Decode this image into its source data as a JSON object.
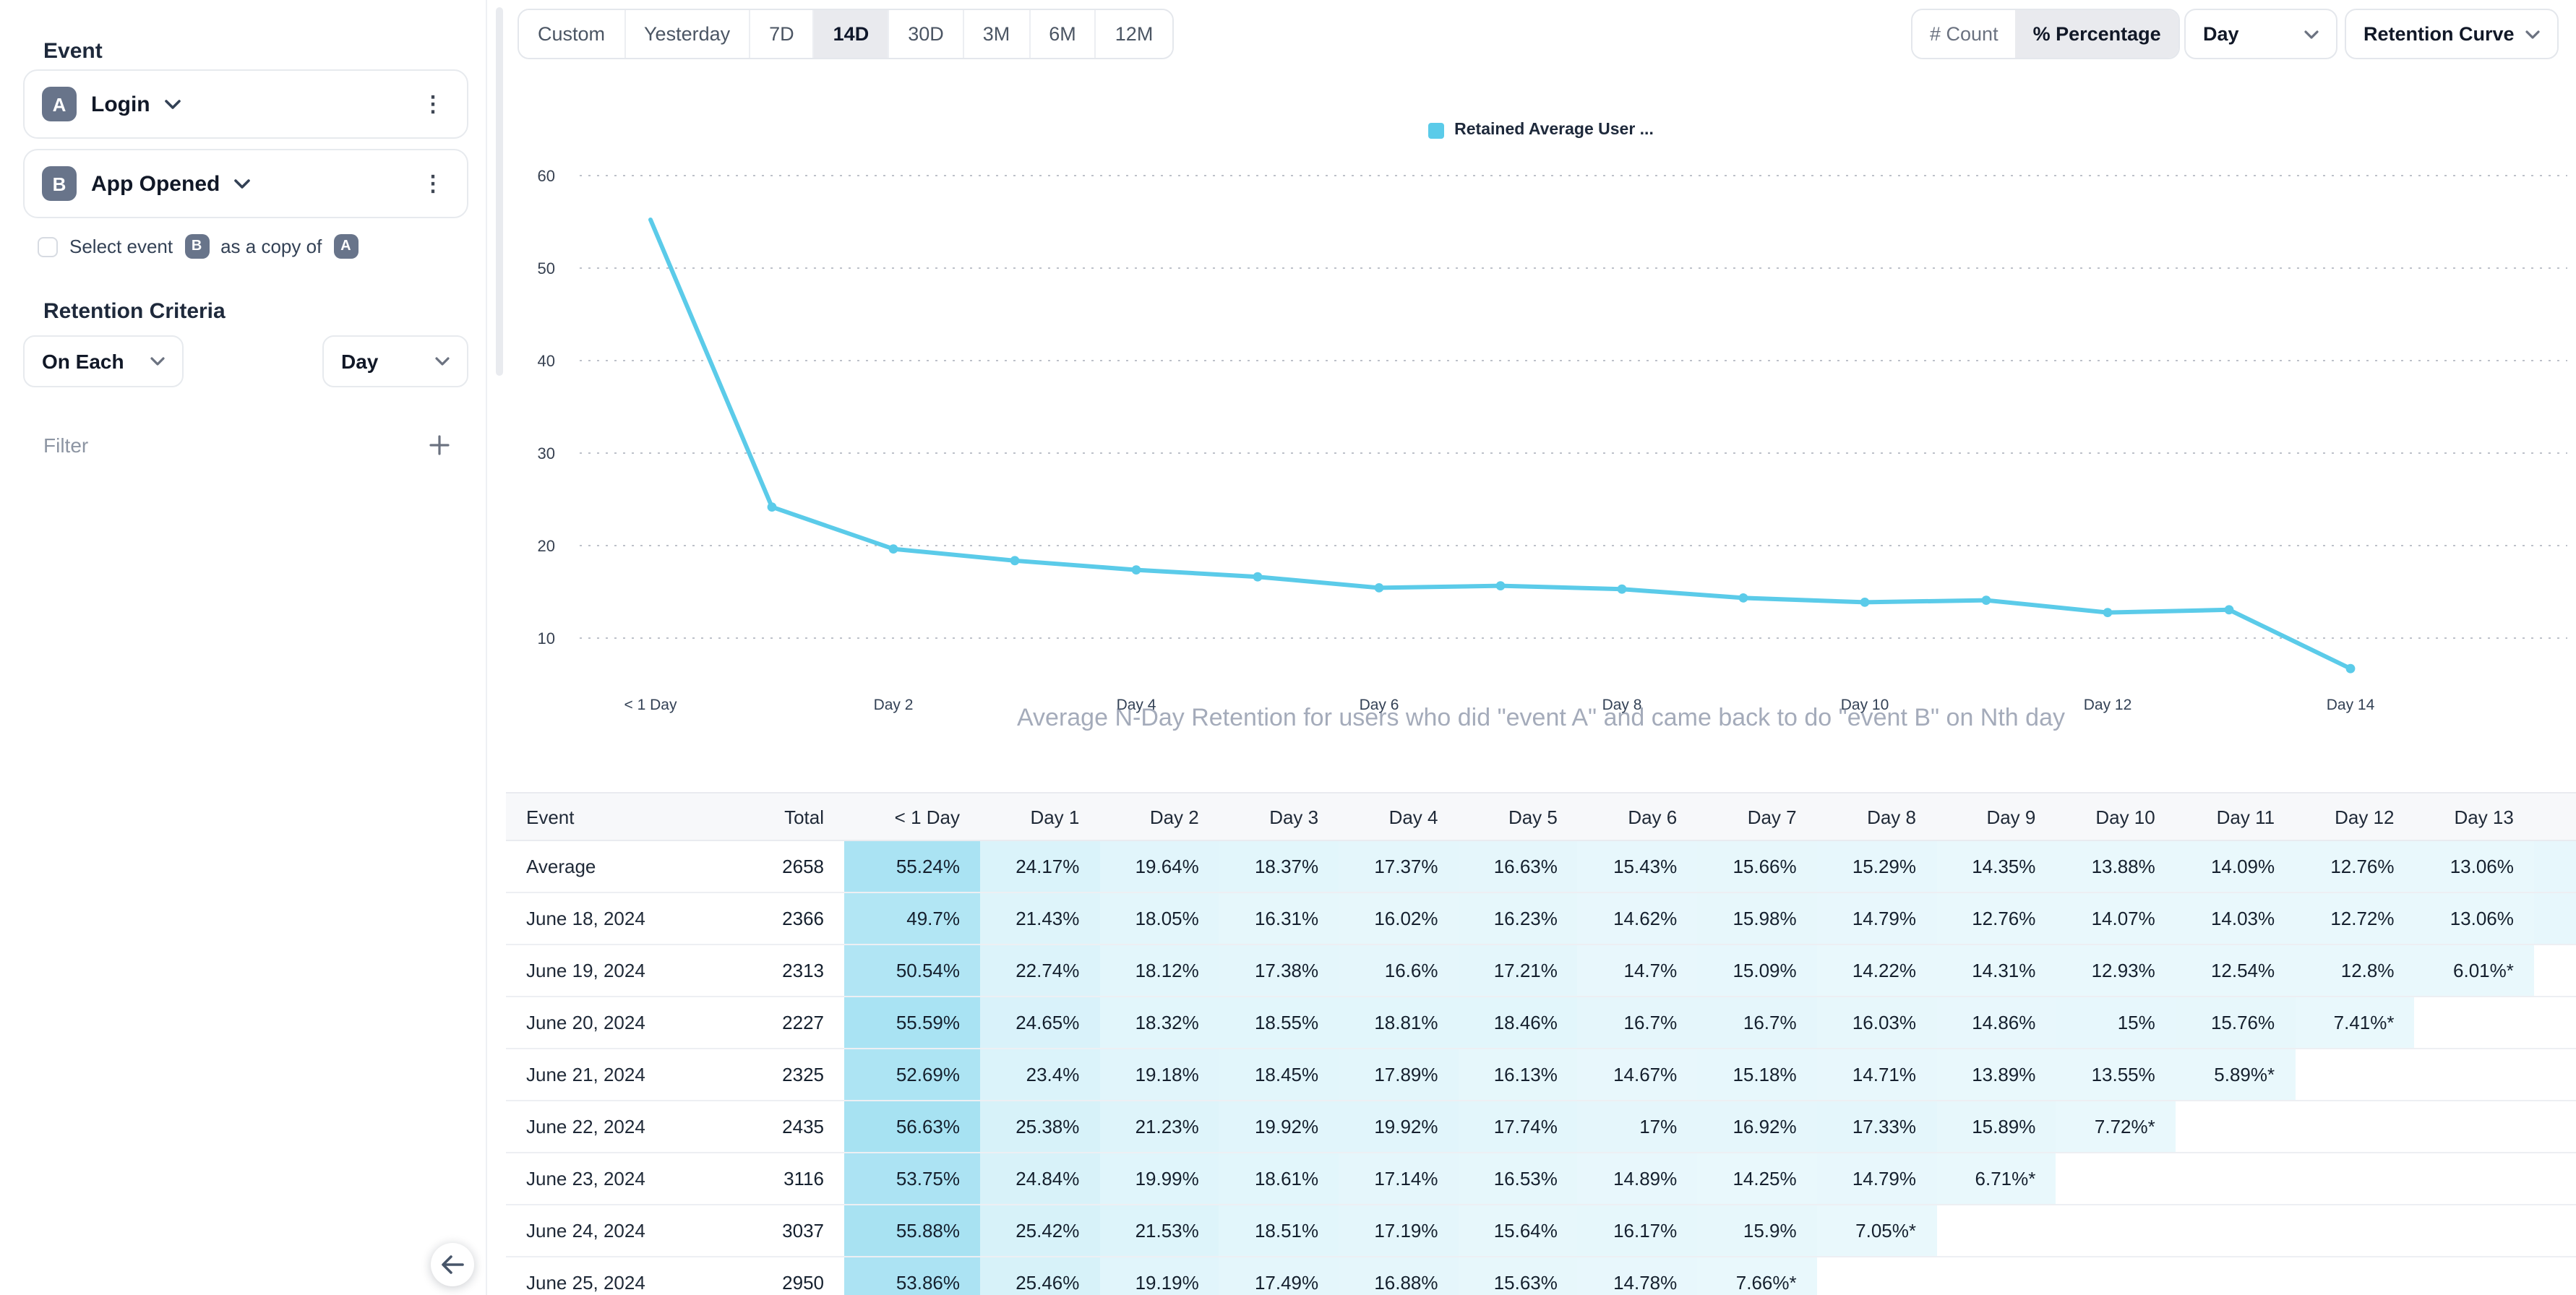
{
  "sidebar": {
    "event_section_label": "Event",
    "events": [
      {
        "badge": "A",
        "name": "Login"
      },
      {
        "badge": "B",
        "name": "App Opened"
      }
    ],
    "copy_checkbox": {
      "checked": false,
      "text_before": "Select event",
      "badge_event": "B",
      "text_middle": "as a copy of",
      "badge_source": "A"
    },
    "retention_criteria_label": "Retention Criteria",
    "on_each_select_value": "On Each",
    "granularity_select_value": "Day",
    "filter_label": "Filter"
  },
  "toolbar": {
    "date_ranges": [
      "Custom",
      "Yesterday",
      "7D",
      "14D",
      "30D",
      "3M",
      "6M",
      "12M"
    ],
    "selected_range": "14D",
    "count_label": "# Count",
    "percentage_label": "% Percentage",
    "selected_metric": "% Percentage",
    "granularity_select_value": "Day",
    "view_select_value": "Retention Curve"
  },
  "chart_data": {
    "type": "line",
    "title": "Average N-Day Retention for users who did \"event A\" and came back to do \"event B\" on Nth day",
    "legend_label": "Retained Average User ...",
    "legend_position": "top-center",
    "grid": "dotted-horizontal",
    "x": [
      "< 1 Day",
      "Day 1",
      "Day 2",
      "Day 3",
      "Day 4",
      "Day 5",
      "Day 6",
      "Day 7",
      "Day 8",
      "Day 9",
      "Day 10",
      "Day 11",
      "Day 12",
      "Day 13",
      "Day 14"
    ],
    "x_axis_labels_shown": [
      "< 1 Day",
      "Day 2",
      "Day 4",
      "Day 6",
      "Day 8",
      "Day 10",
      "Day 12",
      "Day 14"
    ],
    "yticks": [
      10,
      20,
      30,
      40,
      50,
      60
    ],
    "ylim": [
      4,
      64
    ],
    "series": [
      {
        "name": "Retained Average User ...",
        "values": [
          55.24,
          24.17,
          19.64,
          18.37,
          17.37,
          16.63,
          15.43,
          15.66,
          15.29,
          14.35,
          13.88,
          14.09,
          12.76,
          13.06,
          6.7
        ]
      }
    ],
    "note": "last point (Day 14) estimated from plot pixels; table column cut off at screen edge"
  },
  "table": {
    "columns": [
      "Event",
      "Total",
      "< 1 Day",
      "Day 1",
      "Day 2",
      "Day 3",
      "Day 4",
      "Day 5",
      "Day 6",
      "Day 7",
      "Day 8",
      "Day 9",
      "Day 10",
      "Day 11",
      "Day 12",
      "Day 13"
    ],
    "rows": [
      {
        "event": "Average",
        "total": "2658",
        "values": [
          "55.24%",
          "24.17%",
          "19.64%",
          "18.37%",
          "17.37%",
          "16.63%",
          "15.43%",
          "15.66%",
          "15.29%",
          "14.35%",
          "13.88%",
          "14.09%",
          "12.76%",
          "13.06%",
          ""
        ]
      },
      {
        "event": "June 18, 2024",
        "total": "2366",
        "values": [
          "49.7%",
          "21.43%",
          "18.05%",
          "16.31%",
          "16.02%",
          "16.23%",
          "14.62%",
          "15.98%",
          "14.79%",
          "12.76%",
          "14.07%",
          "14.03%",
          "12.72%",
          "13.06%",
          ""
        ]
      },
      {
        "event": "June 19, 2024",
        "total": "2313",
        "values": [
          "50.54%",
          "22.74%",
          "18.12%",
          "17.38%",
          "16.6%",
          "17.21%",
          "14.7%",
          "15.09%",
          "14.22%",
          "14.31%",
          "12.93%",
          "12.54%",
          "12.8%",
          "6.01%*",
          null
        ]
      },
      {
        "event": "June 20, 2024",
        "total": "2227",
        "values": [
          "55.59%",
          "24.65%",
          "18.32%",
          "18.55%",
          "18.81%",
          "18.46%",
          "16.7%",
          "16.7%",
          "16.03%",
          "14.86%",
          "15%",
          "15.76%",
          "7.41%*",
          null,
          null
        ]
      },
      {
        "event": "June 21, 2024",
        "total": "2325",
        "values": [
          "52.69%",
          "23.4%",
          "19.18%",
          "18.45%",
          "17.89%",
          "16.13%",
          "14.67%",
          "15.18%",
          "14.71%",
          "13.89%",
          "13.55%",
          "5.89%*",
          null,
          null,
          null
        ]
      },
      {
        "event": "June 22, 2024",
        "total": "2435",
        "values": [
          "56.63%",
          "25.38%",
          "21.23%",
          "19.92%",
          "19.92%",
          "17.74%",
          "17%",
          "16.92%",
          "17.33%",
          "15.89%",
          "7.72%*",
          null,
          null,
          null,
          null
        ]
      },
      {
        "event": "June 23, 2024",
        "total": "3116",
        "values": [
          "53.75%",
          "24.84%",
          "19.99%",
          "18.61%",
          "17.14%",
          "16.53%",
          "14.89%",
          "14.25%",
          "14.79%",
          "6.71%*",
          null,
          null,
          null,
          null,
          null
        ]
      },
      {
        "event": "June 24, 2024",
        "total": "3037",
        "values": [
          "55.88%",
          "25.42%",
          "21.53%",
          "18.51%",
          "17.19%",
          "15.64%",
          "16.17%",
          "15.9%",
          "7.05%*",
          null,
          null,
          null,
          null,
          null,
          null
        ]
      },
      {
        "event": "June 25, 2024",
        "total": "2950",
        "values": [
          "53.86%",
          "25.46%",
          "19.19%",
          "17.49%",
          "16.88%",
          "15.63%",
          "14.78%",
          "7.66%*",
          null,
          null,
          null,
          null,
          null,
          null,
          null
        ]
      }
    ]
  },
  "colors": {
    "accent_cyan": "#5bcbe9",
    "heatmap_base_rgb": "40,184,224",
    "selected_segment_bg": "#e9eaee",
    "badge_bg": "#68748a",
    "grid_dot": "#9aa1ad"
  }
}
